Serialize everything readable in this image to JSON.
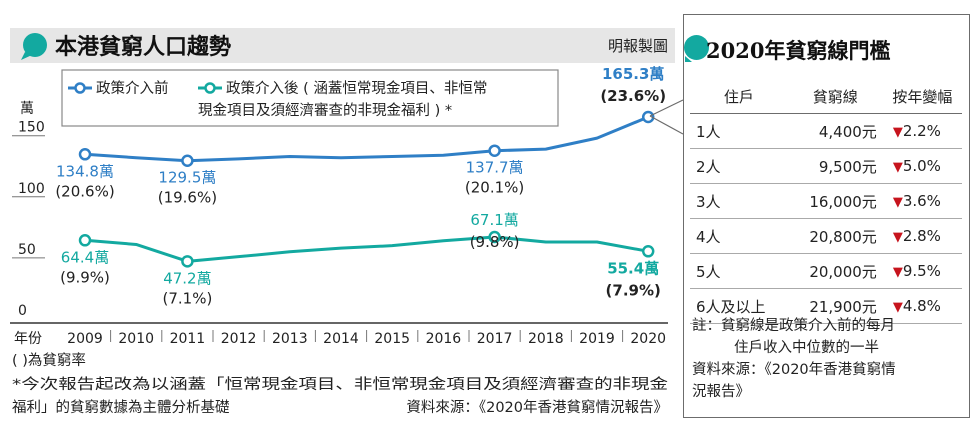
{
  "left": {
    "title": "本港貧窮人口趨勢",
    "credit": "明報製圖",
    "unit": "萬",
    "year_label": "年份",
    "footnote1": "(  )為貧窮率",
    "footnote2a": "*今次報告起改為以涵蓋「恒常現金項目、非恒常現金項目及須經濟審查的非現金",
    "footnote2b": "福利」的貧窮數據為主體分析基礎",
    "source": "資料來源：《2020年香港貧窮情況報告》"
  },
  "legend": {
    "series1": "政策介入前",
    "series2_line1": "政策介入後 ( 涵蓋恒常現金項目、非恒常",
    "series2_line2": "現金項目及須經濟審查的非現金福利 ) *"
  },
  "colors": {
    "before": "#2f7fc6",
    "after": "#13a9a0",
    "accent": "#13a9a0",
    "down": "#c7141d"
  },
  "chart_data": {
    "type": "line",
    "title": "本港貧窮人口趨勢",
    "ylabel": "萬",
    "ylim": [
      0,
      165.3
    ],
    "yticks": [
      0,
      50,
      100,
      150
    ],
    "x": [
      "2009",
      "2010",
      "2011",
      "2012",
      "2013",
      "2014",
      "2015",
      "2016",
      "2017",
      "2018",
      "2019",
      "2020"
    ],
    "series": [
      {
        "name": "政策介入前",
        "values": [
          134.8,
          132,
          129.5,
          131,
          133,
          132,
          133,
          134,
          137.7,
          139,
          148,
          165.3
        ]
      },
      {
        "name": "政策介入後 ( 涵蓋恒常現金項目、非恒常現金項目及須經濟審查的非現金福利 ) *",
        "values": [
          64.4,
          61,
          47.2,
          51,
          55,
          58,
          60,
          64,
          67.1,
          63,
          63,
          55.4
        ]
      }
    ],
    "annotations": [
      {
        "series": 0,
        "year": "2009",
        "value": "134.8萬",
        "rate": "(20.6%)"
      },
      {
        "series": 0,
        "year": "2011",
        "value": "129.5萬",
        "rate": "(19.6%)"
      },
      {
        "series": 0,
        "year": "2017",
        "value": "137.7萬",
        "rate": "(20.1%)"
      },
      {
        "series": 0,
        "year": "2020",
        "value": "165.3萬",
        "rate": "(23.6%)"
      },
      {
        "series": 1,
        "year": "2009",
        "value": "64.4萬",
        "rate": "(9.9%)"
      },
      {
        "series": 1,
        "year": "2011",
        "value": "47.2萬",
        "rate": "(7.1%)"
      },
      {
        "series": 1,
        "year": "2017",
        "value": "67.1萬",
        "rate": "(9.8%)"
      },
      {
        "series": 1,
        "year": "2020",
        "value": "55.4萬",
        "rate": "(7.9%)"
      }
    ]
  },
  "table": {
    "title": "2020年貧窮線門檻",
    "headers": [
      "住戶",
      "貧窮線",
      "按年變幅"
    ],
    "rows": [
      [
        "1人",
        "4,400元",
        "2.2%"
      ],
      [
        "2人",
        "9,500元",
        "5.0%"
      ],
      [
        "3人",
        "16,000元",
        "3.6%"
      ],
      [
        "4人",
        "20,800元",
        "2.8%"
      ],
      [
        "5人",
        "20,000元",
        "9.5%"
      ],
      [
        "6人及以上",
        "21,900元",
        "4.8%"
      ]
    ],
    "down_symbol": "▼",
    "note1": "註：貧窮線是政策介入前的每月",
    "note2": "住戶收入中位數的一半",
    "source1": "資料來源：《2020年香港貧窮情",
    "source2": "況報告》"
  }
}
